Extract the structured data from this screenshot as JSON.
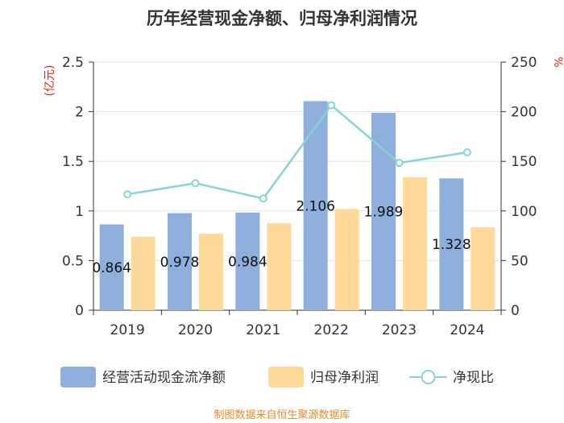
{
  "chart_data": {
    "type": "bar+line",
    "title": "历年经营现金净额、归母净利润情况",
    "categories": [
      "2019",
      "2020",
      "2021",
      "2022",
      "2023",
      "2024"
    ],
    "left_axis": {
      "label": "(亿元)",
      "range": [
        0,
        2.5
      ],
      "ticks": [
        "0",
        "0.5",
        "1",
        "1.5",
        "2",
        "2.5"
      ]
    },
    "right_axis": {
      "label": "%",
      "range": [
        0,
        250
      ],
      "ticks": [
        "0",
        "50",
        "100",
        "150",
        "200",
        "250"
      ]
    },
    "series": [
      {
        "name": "经营活动现金流净额",
        "type": "bar",
        "axis": "left",
        "color": "#8eaedb",
        "values": [
          0.864,
          0.978,
          0.984,
          2.106,
          1.989,
          1.328
        ],
        "labels": [
          "0.864",
          "0.978",
          "0.984",
          "2.106",
          "1.989",
          "1.328"
        ]
      },
      {
        "name": "归母净利润",
        "type": "bar",
        "axis": "left",
        "color": "#ffd999",
        "values": [
          0.74,
          0.77,
          0.875,
          1.02,
          1.34,
          0.835
        ]
      },
      {
        "name": "净现比",
        "type": "line",
        "axis": "right",
        "color": "#87d3d8",
        "values": [
          116.8,
          127.9,
          112.5,
          206.5,
          148.4,
          159.0
        ]
      }
    ],
    "grid": true,
    "legend_position": "bottom"
  },
  "footer": {
    "source": "制图数据来自恒生聚源数据库"
  },
  "colors": {
    "title": "#333333",
    "axis_label": "#e0261b",
    "source": "#e08a2c",
    "tick_text": "#333333",
    "grid": "#e3e3e3"
  }
}
